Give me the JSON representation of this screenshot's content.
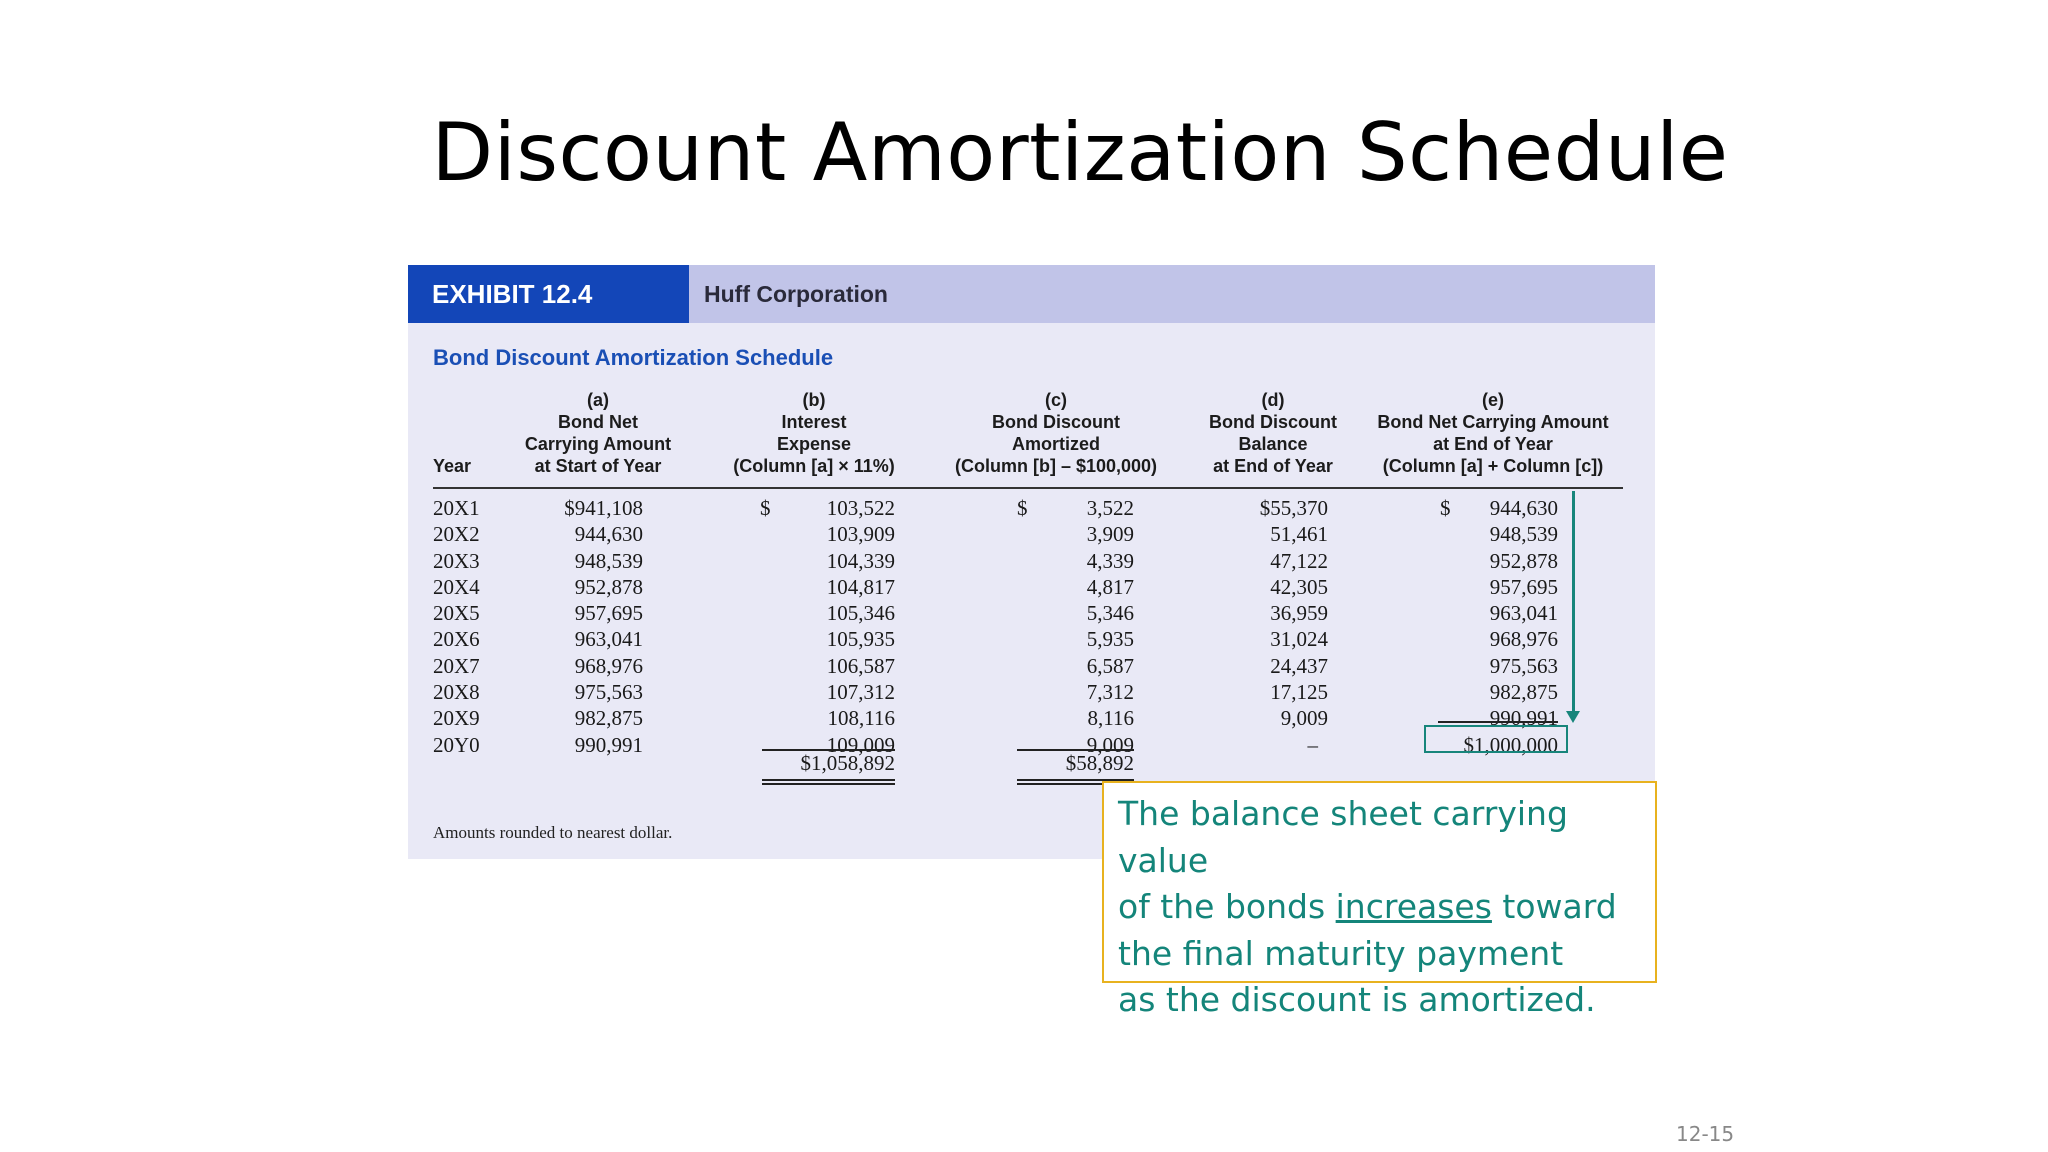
{
  "slide": {
    "title": "Discount Amortization Schedule",
    "page_number": "12-15"
  },
  "exhibit": {
    "tag": "EXHIBIT 12.4",
    "company": "Huff Corporation",
    "subtitle": "Bond Discount Amortization Schedule",
    "note": "Amounts rounded to nearest dollar.",
    "headers": {
      "year": [
        "Year"
      ],
      "a": [
        "(a)",
        "Bond Net",
        "Carrying Amount",
        "at Start of Year"
      ],
      "b": [
        "(b)",
        "Interest",
        "Expense",
        "(Column [a] × 11%)"
      ],
      "c": [
        "(c)",
        "Bond Discount",
        "Amortized",
        "(Column [b] – $100,000)"
      ],
      "d": [
        "(d)",
        "Bond Discount",
        "Balance",
        "at End of Year"
      ],
      "e": [
        "(e)",
        "Bond Net Carrying Amount",
        "at End of Year",
        "(Column [a] + Column [c])"
      ]
    },
    "rows": [
      {
        "year": "20X1",
        "a": "$941,108",
        "b": "103,522",
        "c": "3,522",
        "d": "$55,370",
        "e": "944,630"
      },
      {
        "year": "20X2",
        "a": "944,630",
        "b": "103,909",
        "c": "3,909",
        "d": "51,461",
        "e": "948,539"
      },
      {
        "year": "20X3",
        "a": "948,539",
        "b": "104,339",
        "c": "4,339",
        "d": "47,122",
        "e": "952,878"
      },
      {
        "year": "20X4",
        "a": "952,878",
        "b": "104,817",
        "c": "4,817",
        "d": "42,305",
        "e": "957,695"
      },
      {
        "year": "20X5",
        "a": "957,695",
        "b": "105,346",
        "c": "5,346",
        "d": "36,959",
        "e": "963,041"
      },
      {
        "year": "20X6",
        "a": "963,041",
        "b": "105,935",
        "c": "5,935",
        "d": "31,024",
        "e": "968,976"
      },
      {
        "year": "20X7",
        "a": "968,976",
        "b": "106,587",
        "c": "6,587",
        "d": "24,437",
        "e": "975,563"
      },
      {
        "year": "20X8",
        "a": "975,563",
        "b": "107,312",
        "c": "7,312",
        "d": "17,125",
        "e": "982,875"
      },
      {
        "year": "20X9",
        "a": "982,875",
        "b": "108,116",
        "c": "8,116",
        "d": "9,009",
        "e": "990,991"
      },
      {
        "year": "20Y0",
        "a": "990,991",
        "b": "109,009",
        "c": "9,009",
        "d": "–",
        "e": "$1,000,000"
      }
    ],
    "dollar_sign": "$",
    "totals": {
      "b": "$1,058,892",
      "c": "$58,892"
    }
  },
  "callout": {
    "line1": "The balance sheet carrying value",
    "line2_pre": "of the bonds ",
    "line2_underlined": "increases",
    "line2_post": " toward",
    "line3": "the final maturity payment",
    "line4": "as the discount is amortized."
  },
  "colors": {
    "exhibit_tag": "#1346b8",
    "exhibit_header": "#c1c4e8",
    "exhibit_bg": "#e9e9f6",
    "teal": "#17857b",
    "callout_border": "#e8b21f"
  }
}
